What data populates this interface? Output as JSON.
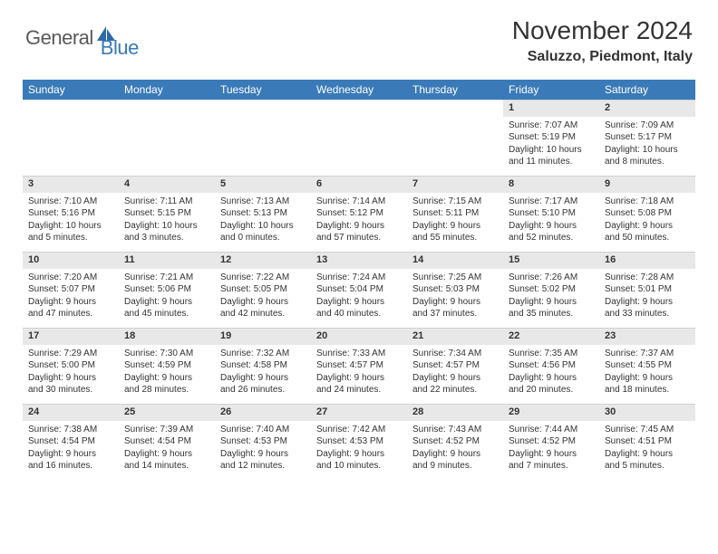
{
  "logo": {
    "general": "General",
    "blue": "Blue"
  },
  "title": "November 2024",
  "location": "Saluzzo, Piedmont, Italy",
  "colors": {
    "header_bg": "#3a7ab8",
    "header_text": "#ffffff",
    "daynum_bg": "#e8e8e8",
    "text": "#333333",
    "logo_gray": "#5a5a5a",
    "logo_blue": "#3a7ab8",
    "page_bg": "#ffffff"
  },
  "weekdays": [
    "Sunday",
    "Monday",
    "Tuesday",
    "Wednesday",
    "Thursday",
    "Friday",
    "Saturday"
  ],
  "weeks": [
    [
      null,
      null,
      null,
      null,
      null,
      {
        "n": "1",
        "sr": "Sunrise: 7:07 AM",
        "ss": "Sunset: 5:19 PM",
        "d1": "Daylight: 10 hours",
        "d2": "and 11 minutes."
      },
      {
        "n": "2",
        "sr": "Sunrise: 7:09 AM",
        "ss": "Sunset: 5:17 PM",
        "d1": "Daylight: 10 hours",
        "d2": "and 8 minutes."
      }
    ],
    [
      {
        "n": "3",
        "sr": "Sunrise: 7:10 AM",
        "ss": "Sunset: 5:16 PM",
        "d1": "Daylight: 10 hours",
        "d2": "and 5 minutes."
      },
      {
        "n": "4",
        "sr": "Sunrise: 7:11 AM",
        "ss": "Sunset: 5:15 PM",
        "d1": "Daylight: 10 hours",
        "d2": "and 3 minutes."
      },
      {
        "n": "5",
        "sr": "Sunrise: 7:13 AM",
        "ss": "Sunset: 5:13 PM",
        "d1": "Daylight: 10 hours",
        "d2": "and 0 minutes."
      },
      {
        "n": "6",
        "sr": "Sunrise: 7:14 AM",
        "ss": "Sunset: 5:12 PM",
        "d1": "Daylight: 9 hours",
        "d2": "and 57 minutes."
      },
      {
        "n": "7",
        "sr": "Sunrise: 7:15 AM",
        "ss": "Sunset: 5:11 PM",
        "d1": "Daylight: 9 hours",
        "d2": "and 55 minutes."
      },
      {
        "n": "8",
        "sr": "Sunrise: 7:17 AM",
        "ss": "Sunset: 5:10 PM",
        "d1": "Daylight: 9 hours",
        "d2": "and 52 minutes."
      },
      {
        "n": "9",
        "sr": "Sunrise: 7:18 AM",
        "ss": "Sunset: 5:08 PM",
        "d1": "Daylight: 9 hours",
        "d2": "and 50 minutes."
      }
    ],
    [
      {
        "n": "10",
        "sr": "Sunrise: 7:20 AM",
        "ss": "Sunset: 5:07 PM",
        "d1": "Daylight: 9 hours",
        "d2": "and 47 minutes."
      },
      {
        "n": "11",
        "sr": "Sunrise: 7:21 AM",
        "ss": "Sunset: 5:06 PM",
        "d1": "Daylight: 9 hours",
        "d2": "and 45 minutes."
      },
      {
        "n": "12",
        "sr": "Sunrise: 7:22 AM",
        "ss": "Sunset: 5:05 PM",
        "d1": "Daylight: 9 hours",
        "d2": "and 42 minutes."
      },
      {
        "n": "13",
        "sr": "Sunrise: 7:24 AM",
        "ss": "Sunset: 5:04 PM",
        "d1": "Daylight: 9 hours",
        "d2": "and 40 minutes."
      },
      {
        "n": "14",
        "sr": "Sunrise: 7:25 AM",
        "ss": "Sunset: 5:03 PM",
        "d1": "Daylight: 9 hours",
        "d2": "and 37 minutes."
      },
      {
        "n": "15",
        "sr": "Sunrise: 7:26 AM",
        "ss": "Sunset: 5:02 PM",
        "d1": "Daylight: 9 hours",
        "d2": "and 35 minutes."
      },
      {
        "n": "16",
        "sr": "Sunrise: 7:28 AM",
        "ss": "Sunset: 5:01 PM",
        "d1": "Daylight: 9 hours",
        "d2": "and 33 minutes."
      }
    ],
    [
      {
        "n": "17",
        "sr": "Sunrise: 7:29 AM",
        "ss": "Sunset: 5:00 PM",
        "d1": "Daylight: 9 hours",
        "d2": "and 30 minutes."
      },
      {
        "n": "18",
        "sr": "Sunrise: 7:30 AM",
        "ss": "Sunset: 4:59 PM",
        "d1": "Daylight: 9 hours",
        "d2": "and 28 minutes."
      },
      {
        "n": "19",
        "sr": "Sunrise: 7:32 AM",
        "ss": "Sunset: 4:58 PM",
        "d1": "Daylight: 9 hours",
        "d2": "and 26 minutes."
      },
      {
        "n": "20",
        "sr": "Sunrise: 7:33 AM",
        "ss": "Sunset: 4:57 PM",
        "d1": "Daylight: 9 hours",
        "d2": "and 24 minutes."
      },
      {
        "n": "21",
        "sr": "Sunrise: 7:34 AM",
        "ss": "Sunset: 4:57 PM",
        "d1": "Daylight: 9 hours",
        "d2": "and 22 minutes."
      },
      {
        "n": "22",
        "sr": "Sunrise: 7:35 AM",
        "ss": "Sunset: 4:56 PM",
        "d1": "Daylight: 9 hours",
        "d2": "and 20 minutes."
      },
      {
        "n": "23",
        "sr": "Sunrise: 7:37 AM",
        "ss": "Sunset: 4:55 PM",
        "d1": "Daylight: 9 hours",
        "d2": "and 18 minutes."
      }
    ],
    [
      {
        "n": "24",
        "sr": "Sunrise: 7:38 AM",
        "ss": "Sunset: 4:54 PM",
        "d1": "Daylight: 9 hours",
        "d2": "and 16 minutes."
      },
      {
        "n": "25",
        "sr": "Sunrise: 7:39 AM",
        "ss": "Sunset: 4:54 PM",
        "d1": "Daylight: 9 hours",
        "d2": "and 14 minutes."
      },
      {
        "n": "26",
        "sr": "Sunrise: 7:40 AM",
        "ss": "Sunset: 4:53 PM",
        "d1": "Daylight: 9 hours",
        "d2": "and 12 minutes."
      },
      {
        "n": "27",
        "sr": "Sunrise: 7:42 AM",
        "ss": "Sunset: 4:53 PM",
        "d1": "Daylight: 9 hours",
        "d2": "and 10 minutes."
      },
      {
        "n": "28",
        "sr": "Sunrise: 7:43 AM",
        "ss": "Sunset: 4:52 PM",
        "d1": "Daylight: 9 hours",
        "d2": "and 9 minutes."
      },
      {
        "n": "29",
        "sr": "Sunrise: 7:44 AM",
        "ss": "Sunset: 4:52 PM",
        "d1": "Daylight: 9 hours",
        "d2": "and 7 minutes."
      },
      {
        "n": "30",
        "sr": "Sunrise: 7:45 AM",
        "ss": "Sunset: 4:51 PM",
        "d1": "Daylight: 9 hours",
        "d2": "and 5 minutes."
      }
    ]
  ]
}
